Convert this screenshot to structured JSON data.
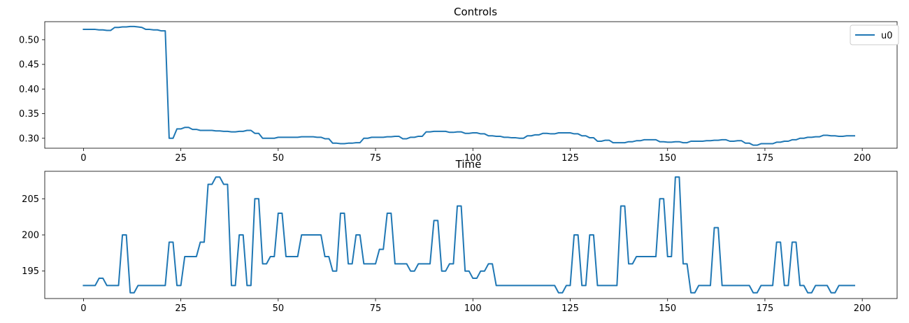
{
  "chart_data": [
    {
      "type": "line",
      "title": "Controls",
      "xlim": [
        -9.95,
        208.95
      ],
      "ylim": [
        0.2798,
        0.5367
      ],
      "xticks": [
        0,
        25,
        50,
        75,
        100,
        125,
        150,
        175,
        200
      ],
      "yticks": [
        0.3,
        0.35,
        0.4,
        0.45,
        0.5
      ],
      "ytick_labels": [
        "0.30",
        "0.35",
        "0.40",
        "0.45",
        "0.50"
      ],
      "grid": false,
      "legend": {
        "placement": "top-right",
        "entries": [
          "u0"
        ]
      },
      "color": "#1f77b4",
      "series": [
        {
          "name": "u0",
          "x": [
            0,
            1,
            2,
            3,
            4,
            5,
            6,
            7,
            8,
            9,
            10,
            11,
            12,
            13,
            14,
            15,
            16,
            17,
            18,
            19,
            20,
            21,
            22,
            23,
            24,
            25,
            26,
            27,
            28,
            29,
            30,
            31,
            32,
            33,
            34,
            35,
            36,
            37,
            38,
            39,
            40,
            41,
            42,
            43,
            44,
            45,
            46,
            47,
            48,
            49,
            50,
            51,
            52,
            53,
            54,
            55,
            56,
            57,
            58,
            59,
            60,
            61,
            62,
            63,
            64,
            65,
            66,
            67,
            68,
            69,
            70,
            71,
            72,
            73,
            74,
            75,
            76,
            77,
            78,
            79,
            80,
            81,
            82,
            83,
            84,
            85,
            86,
            87,
            88,
            89,
            90,
            91,
            92,
            93,
            94,
            95,
            96,
            97,
            98,
            99,
            100,
            101,
            102,
            103,
            104,
            105,
            106,
            107,
            108,
            109,
            110,
            111,
            112,
            113,
            114,
            115,
            116,
            117,
            118,
            119,
            120,
            121,
            122,
            123,
            124,
            125,
            126,
            127,
            128,
            129,
            130,
            131,
            132,
            133,
            134,
            135,
            136,
            137,
            138,
            139,
            140,
            141,
            142,
            143,
            144,
            145,
            146,
            147,
            148,
            149,
            150,
            151,
            152,
            153,
            154,
            155,
            156,
            157,
            158,
            159,
            160,
            161,
            162,
            163,
            164,
            165,
            166,
            167,
            168,
            169,
            170,
            171,
            172,
            173,
            174,
            175,
            176,
            177,
            178,
            179,
            180,
            181,
            182,
            183,
            184,
            185,
            186,
            187,
            188,
            189,
            190,
            191,
            192,
            193,
            194,
            195,
            196,
            197,
            198
          ],
          "values": [
            0.521,
            0.521,
            0.521,
            0.521,
            0.52,
            0.52,
            0.519,
            0.519,
            0.525,
            0.525,
            0.526,
            0.526,
            0.527,
            0.527,
            0.526,
            0.525,
            0.521,
            0.521,
            0.52,
            0.52,
            0.518,
            0.518,
            0.3,
            0.3,
            0.319,
            0.319,
            0.322,
            0.322,
            0.318,
            0.318,
            0.316,
            0.316,
            0.316,
            0.316,
            0.315,
            0.315,
            0.314,
            0.314,
            0.313,
            0.313,
            0.314,
            0.314,
            0.316,
            0.316,
            0.31,
            0.31,
            0.3,
            0.3,
            0.3,
            0.3,
            0.302,
            0.302,
            0.302,
            0.302,
            0.302,
            0.302,
            0.303,
            0.303,
            0.303,
            0.303,
            0.302,
            0.302,
            0.299,
            0.299,
            0.29,
            0.29,
            0.289,
            0.289,
            0.29,
            0.29,
            0.291,
            0.291,
            0.3,
            0.3,
            0.302,
            0.302,
            0.302,
            0.302,
            0.303,
            0.303,
            0.304,
            0.304,
            0.299,
            0.299,
            0.302,
            0.302,
            0.304,
            0.304,
            0.313,
            0.313,
            0.314,
            0.314,
            0.314,
            0.314,
            0.312,
            0.312,
            0.313,
            0.313,
            0.31,
            0.31,
            0.311,
            0.311,
            0.309,
            0.309,
            0.305,
            0.305,
            0.304,
            0.304,
            0.302,
            0.302,
            0.301,
            0.301,
            0.3,
            0.3,
            0.305,
            0.305,
            0.307,
            0.307,
            0.31,
            0.31,
            0.309,
            0.309,
            0.311,
            0.311,
            0.311,
            0.311,
            0.309,
            0.309,
            0.305,
            0.305,
            0.301,
            0.301,
            0.294,
            0.294,
            0.296,
            0.296,
            0.291,
            0.291,
            0.291,
            0.291,
            0.293,
            0.293,
            0.295,
            0.295,
            0.297,
            0.297,
            0.297,
            0.297,
            0.293,
            0.293,
            0.292,
            0.292,
            0.293,
            0.293,
            0.291,
            0.291,
            0.294,
            0.294,
            0.294,
            0.294,
            0.295,
            0.295,
            0.296,
            0.296,
            0.297,
            0.297,
            0.294,
            0.294,
            0.295,
            0.295,
            0.29,
            0.29,
            0.286,
            0.286,
            0.289,
            0.289,
            0.289,
            0.289,
            0.292,
            0.292,
            0.294,
            0.294,
            0.297,
            0.297,
            0.3,
            0.3,
            0.302,
            0.302,
            0.303,
            0.303,
            0.306,
            0.306,
            0.305,
            0.305,
            0.304,
            0.304,
            0.305,
            0.305,
            0.305
          ]
        }
      ]
    },
    {
      "type": "line",
      "title": "Time",
      "xlim": [
        -9.95,
        208.95
      ],
      "ylim": [
        191.2,
        208.8
      ],
      "xticks": [
        0,
        25,
        50,
        75,
        100,
        125,
        150,
        175,
        200
      ],
      "yticks": [
        195,
        200,
        205
      ],
      "ytick_labels": [
        "195",
        "200",
        "205"
      ],
      "grid": false,
      "color": "#1f77b4",
      "series": [
        {
          "x": [
            0,
            1,
            2,
            3,
            4,
            5,
            6,
            7,
            8,
            9,
            10,
            11,
            12,
            13,
            14,
            15,
            16,
            17,
            18,
            19,
            20,
            21,
            22,
            23,
            24,
            25,
            26,
            27,
            28,
            29,
            30,
            31,
            32,
            33,
            34,
            35,
            36,
            37,
            38,
            39,
            40,
            41,
            42,
            43,
            44,
            45,
            46,
            47,
            48,
            49,
            50,
            51,
            52,
            53,
            54,
            55,
            56,
            57,
            58,
            59,
            60,
            61,
            62,
            63,
            64,
            65,
            66,
            67,
            68,
            69,
            70,
            71,
            72,
            73,
            74,
            75,
            76,
            77,
            78,
            79,
            80,
            81,
            82,
            83,
            84,
            85,
            86,
            87,
            88,
            89,
            90,
            91,
            92,
            93,
            94,
            95,
            96,
            97,
            98,
            99,
            100,
            101,
            102,
            103,
            104,
            105,
            106,
            107,
            108,
            109,
            110,
            111,
            112,
            113,
            114,
            115,
            116,
            117,
            118,
            119,
            120,
            121,
            122,
            123,
            124,
            125,
            126,
            127,
            128,
            129,
            130,
            131,
            132,
            133,
            134,
            135,
            136,
            137,
            138,
            139,
            140,
            141,
            142,
            143,
            144,
            145,
            146,
            147,
            148,
            149,
            150,
            151,
            152,
            153,
            154,
            155,
            156,
            157,
            158,
            159,
            160,
            161,
            162,
            163,
            164,
            165,
            166,
            167,
            168,
            169,
            170,
            171,
            172,
            173,
            174,
            175,
            176,
            177,
            178,
            179,
            180,
            181,
            182,
            183,
            184,
            185,
            186,
            187,
            188,
            189,
            190,
            191,
            192,
            193,
            194,
            195,
            196,
            197,
            198
          ],
          "values": [
            193,
            193,
            193,
            193,
            194,
            194,
            193,
            193,
            193,
            193,
            200,
            200,
            192,
            192,
            193,
            193,
            193,
            193,
            193,
            193,
            193,
            193,
            199,
            199,
            193,
            193,
            197,
            197,
            197,
            197,
            199,
            199,
            207,
            207,
            208,
            208,
            207,
            207,
            193,
            193,
            200,
            200,
            193,
            193,
            205,
            205,
            196,
            196,
            197,
            197,
            203,
            203,
            197,
            197,
            197,
            197,
            200,
            200,
            200,
            200,
            200,
            200,
            197,
            197,
            195,
            195,
            203,
            203,
            196,
            196,
            200,
            200,
            196,
            196,
            196,
            196,
            198,
            198,
            203,
            203,
            196,
            196,
            196,
            196,
            195,
            195,
            196,
            196,
            196,
            196,
            202,
            202,
            195,
            195,
            196,
            196,
            204,
            204,
            195,
            195,
            194,
            194,
            195,
            195,
            196,
            196,
            193,
            193,
            193,
            193,
            193,
            193,
            193,
            193,
            193,
            193,
            193,
            193,
            193,
            193,
            193,
            193,
            192,
            192,
            193,
            193,
            200,
            200,
            193,
            193,
            200,
            200,
            193,
            193,
            193,
            193,
            193,
            193,
            204,
            204,
            196,
            196,
            197,
            197,
            197,
            197,
            197,
            197,
            205,
            205,
            197,
            197,
            208,
            208,
            196,
            196,
            192,
            192,
            193,
            193,
            193,
            193,
            201,
            201,
            193,
            193,
            193,
            193,
            193,
            193,
            193,
            193,
            192,
            192,
            193,
            193,
            193,
            193,
            199,
            199,
            193,
            193,
            199,
            199,
            193,
            193,
            192,
            192,
            193,
            193,
            193,
            193,
            192,
            192,
            193,
            193,
            193,
            193,
            193
          ]
        }
      ]
    }
  ]
}
